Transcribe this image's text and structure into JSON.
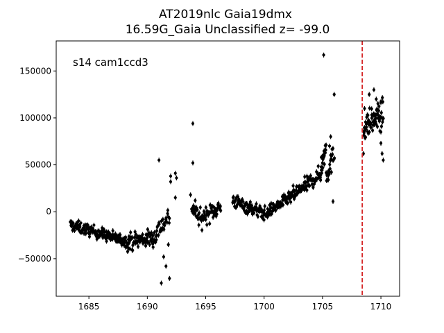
{
  "chart_data": {
    "type": "scatter",
    "title_line1": "AT2019nlc  Gaia19dmx",
    "title_line2": "16.59G_Gaia Unclassified z= -99.0",
    "annotation": "s14 cam1ccd3",
    "xlabel": "",
    "ylabel": "",
    "xlim": [
      1682.2,
      1711.6
    ],
    "ylim": [
      -90000,
      182000
    ],
    "x_ticks": [
      1685,
      1690,
      1695,
      1700,
      1705,
      1710
    ],
    "x_tick_labels": [
      "1685",
      "1690",
      "1695",
      "1700",
      "1705",
      "1710"
    ],
    "y_ticks": [
      -50000,
      0,
      50000,
      100000,
      150000
    ],
    "y_tick_labels": [
      "−50000",
      "0",
      "50000",
      "100000",
      "150000"
    ],
    "grid": false,
    "marker_color": "#000000",
    "vline": {
      "x": 1708.4,
      "color": "#d62728",
      "style": "dashed"
    },
    "segments": [
      {
        "x0": 1683.4,
        "x1": 1686.2,
        "y0": -14000,
        "y1": -24000,
        "scatter": 6000,
        "n": 90
      },
      {
        "x0": 1686.2,
        "x1": 1688.3,
        "y0": -24000,
        "y1": -32000,
        "scatter": 6000,
        "n": 70
      },
      {
        "x0": 1688.3,
        "x1": 1690.8,
        "y0": -32000,
        "y1": -27000,
        "scatter": 9000,
        "n": 80
      },
      {
        "x0": 1690.8,
        "x1": 1691.9,
        "y0": -20000,
        "y1": -5000,
        "scatter": 10000,
        "n": 25
      },
      {
        "x0": 1693.8,
        "x1": 1694.7,
        "y0": 5000,
        "y1": -10000,
        "scatter": 9000,
        "n": 30
      },
      {
        "x0": 1694.7,
        "x1": 1696.3,
        "y0": -5000,
        "y1": 5000,
        "scatter": 9000,
        "n": 50
      },
      {
        "x0": 1697.3,
        "x1": 1699.0,
        "y0": 12000,
        "y1": 3000,
        "scatter": 7000,
        "n": 55
      },
      {
        "x0": 1699.0,
        "x1": 1700.3,
        "y0": 3000,
        "y1": -3000,
        "scatter": 7000,
        "n": 45
      },
      {
        "x0": 1700.3,
        "x1": 1702.2,
        "y0": 0,
        "y1": 15000,
        "scatter": 6000,
        "n": 60
      },
      {
        "x0": 1702.2,
        "x1": 1704.8,
        "y0": 15000,
        "y1": 40000,
        "scatter": 8000,
        "n": 80
      },
      {
        "x0": 1704.8,
        "x1": 1705.3,
        "y0": 40000,
        "y1": 70000,
        "scatter": 12000,
        "n": 20
      },
      {
        "x0": 1705.3,
        "x1": 1706.0,
        "y0": 40000,
        "y1": 60000,
        "scatter": 12000,
        "n": 25
      },
      {
        "x0": 1708.5,
        "x1": 1710.2,
        "y0": 90000,
        "y1": 105000,
        "scatter": 14000,
        "n": 70
      }
    ],
    "outliers": [
      [
        1691.0,
        55000
      ],
      [
        1691.2,
        -76000
      ],
      [
        1691.4,
        -48000
      ],
      [
        1691.9,
        -71000
      ],
      [
        1692.0,
        38000
      ],
      [
        1692.0,
        32000
      ],
      [
        1692.4,
        41000
      ],
      [
        1692.5,
        36000
      ],
      [
        1692.4,
        15000
      ],
      [
        1691.8,
        -35000
      ],
      [
        1691.6,
        -58000
      ],
      [
        1693.9,
        94000
      ],
      [
        1693.9,
        52000
      ],
      [
        1693.7,
        18000
      ],
      [
        1694.1,
        12000
      ],
      [
        1705.1,
        167000
      ],
      [
        1705.5,
        34000
      ],
      [
        1705.9,
        11000
      ],
      [
        1706.0,
        125000
      ],
      [
        1704.9,
        58000
      ],
      [
        1705.0,
        52000
      ],
      [
        1705.7,
        80000
      ],
      [
        1705.6,
        70000
      ],
      [
        1708.5,
        62000
      ],
      [
        1708.6,
        110000
      ],
      [
        1709.0,
        125000
      ],
      [
        1709.4,
        130000
      ],
      [
        1709.6,
        120000
      ],
      [
        1710.0,
        85000
      ],
      [
        1710.1,
        62000
      ],
      [
        1710.2,
        55000
      ],
      [
        1710.0,
        73000
      ]
    ]
  }
}
